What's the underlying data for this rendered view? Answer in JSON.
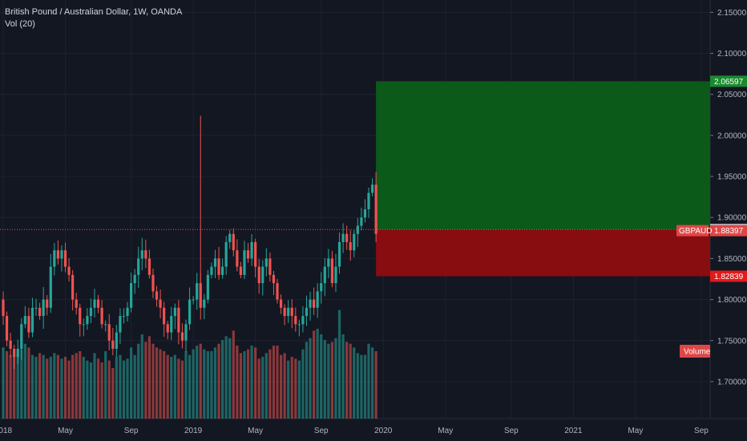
{
  "header": {
    "symbol_line": "British Pound / Australian Dollar, 1W, OANDA",
    "volume_line": "Vol (20)"
  },
  "colors": {
    "background": "#131722",
    "grid": "#1e2230",
    "up": "#26a69a",
    "down": "#ef5350",
    "target_zone": "#0b5e1a",
    "stop_zone": "#8d0d10",
    "target_tag": "#1b8a2e",
    "stop_tag": "#e01b1b",
    "price_tag": "#e04646",
    "volume_tag": "#e04646"
  },
  "tags": {
    "target": "2.06597",
    "entry": "1.88529",
    "ticker": "GBPAUD",
    "current": "1.88397",
    "stop": "1.82839",
    "volume": "Volume"
  },
  "chart_data": {
    "type": "candlestick",
    "interval": "1W",
    "ylim": [
      1.655,
      2.165
    ],
    "y_ticks": [
      2.15,
      2.1,
      2.05,
      2.0,
      1.95,
      1.9,
      1.85,
      1.8,
      1.75,
      1.7
    ],
    "y_tick_labels": [
      "2.15000",
      "2.10000",
      "2.05000",
      "2.00000",
      "1.95000",
      "1.90000",
      "1.85000",
      "1.80000",
      "1.75000",
      "1.70000"
    ],
    "x_ticks": [
      {
        "label": "2018",
        "week": 0
      },
      {
        "label": "May",
        "week": 17
      },
      {
        "label": "Sep",
        "week": 35
      },
      {
        "label": "2019",
        "week": 52
      },
      {
        "label": "May",
        "week": 69
      },
      {
        "label": "Sep",
        "week": 87
      },
      {
        "label": "2020",
        "week": 104
      },
      {
        "label": "May",
        "week": 121
      },
      {
        "label": "Sep",
        "week": 139
      },
      {
        "label": "2021",
        "week": 156
      },
      {
        "label": "May",
        "week": 173
      },
      {
        "label": "Sep",
        "week": 191
      }
    ],
    "position": {
      "entry": 1.88529,
      "target": 2.06597,
      "stop": 1.82839,
      "current": 1.88397,
      "start_week": 102,
      "end_week": 192
    },
    "closes": [
      1.78,
      1.75,
      1.74,
      1.73,
      1.74,
      1.77,
      1.78,
      1.76,
      1.79,
      1.79,
      1.78,
      1.8,
      1.79,
      1.84,
      1.86,
      1.85,
      1.86,
      1.84,
      1.83,
      1.8,
      1.79,
      1.77,
      1.77,
      1.78,
      1.79,
      1.8,
      1.79,
      1.77,
      1.77,
      1.75,
      1.74,
      1.76,
      1.78,
      1.78,
      1.79,
      1.82,
      1.83,
      1.85,
      1.86,
      1.85,
      1.83,
      1.81,
      1.8,
      1.79,
      1.77,
      1.76,
      1.78,
      1.79,
      1.76,
      1.75,
      1.77,
      1.8,
      1.8,
      1.82,
      1.79,
      1.8,
      1.83,
      1.84,
      1.85,
      1.83,
      1.84,
      1.87,
      1.88,
      1.86,
      1.84,
      1.83,
      1.86,
      1.85,
      1.87,
      1.84,
      1.82,
      1.84,
      1.85,
      1.83,
      1.82,
      1.8,
      1.79,
      1.78,
      1.79,
      1.78,
      1.77,
      1.77,
      1.78,
      1.79,
      1.8,
      1.79,
      1.81,
      1.82,
      1.84,
      1.85,
      1.82,
      1.84,
      1.87,
      1.88,
      1.87,
      1.86,
      1.88,
      1.89,
      1.9,
      1.91,
      1.93,
      1.94,
      1.88
    ],
    "volumes": [
      0.38,
      0.36,
      0.34,
      0.33,
      0.35,
      0.37,
      0.4,
      0.38,
      0.34,
      0.33,
      0.35,
      0.34,
      0.32,
      0.33,
      0.35,
      0.34,
      0.32,
      0.33,
      0.31,
      0.34,
      0.35,
      0.36,
      0.33,
      0.31,
      0.3,
      0.35,
      0.32,
      0.3,
      0.36,
      0.31,
      0.27,
      0.33,
      0.34,
      0.31,
      0.32,
      0.38,
      0.34,
      0.4,
      0.45,
      0.41,
      0.44,
      0.4,
      0.38,
      0.37,
      0.36,
      0.34,
      0.33,
      0.34,
      0.32,
      0.31,
      0.36,
      0.34,
      0.37,
      0.39,
      0.4,
      0.37,
      0.36,
      0.36,
      0.38,
      0.4,
      0.42,
      0.44,
      0.43,
      0.47,
      0.39,
      0.35,
      0.36,
      0.37,
      0.39,
      0.38,
      0.32,
      0.33,
      0.35,
      0.37,
      0.39,
      0.39,
      0.34,
      0.35,
      0.31,
      0.33,
      0.32,
      0.31,
      0.37,
      0.41,
      0.43,
      0.47,
      0.48,
      0.45,
      0.42,
      0.4,
      0.41,
      0.43,
      0.58,
      0.45,
      0.41,
      0.4,
      0.38,
      0.35,
      0.34,
      0.34,
      0.4,
      0.38,
      0.36
    ]
  }
}
